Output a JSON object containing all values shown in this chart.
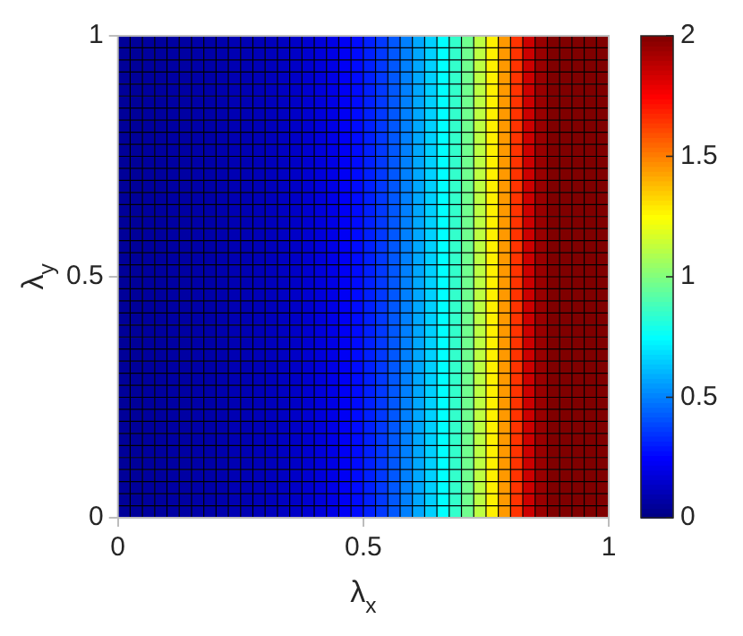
{
  "chart_data": {
    "type": "heatmap",
    "xlabel": "λ$_{x}$",
    "ylabel": "λ$_{y}$",
    "xlim": [
      0,
      1
    ],
    "xticks": [
      0,
      0.5,
      1
    ],
    "ylim": [
      0,
      1
    ],
    "yticks": [
      0,
      0.5,
      1
    ],
    "clim": [
      0,
      2
    ],
    "cticks": [
      0,
      0.5,
      1,
      1.5,
      2
    ],
    "cells": [
      [
        0.05,
        0.05,
        0.06,
        0.06,
        0.07,
        0.07,
        0.08,
        0.08,
        0.09,
        0.1,
        0.1,
        0.11,
        0.12,
        0.13,
        0.14,
        0.16,
        0.18,
        0.2,
        0.23,
        0.27,
        0.31,
        0.36,
        0.42,
        0.5,
        0.58,
        0.66,
        0.75,
        0.85,
        0.97,
        1.12,
        1.28,
        1.45,
        1.65,
        1.85,
        1.95,
        2,
        2,
        2,
        2,
        2
      ],
      [
        0.05,
        0.05,
        0.06,
        0.06,
        0.07,
        0.07,
        0.08,
        0.08,
        0.09,
        0.1,
        0.1,
        0.11,
        0.12,
        0.13,
        0.14,
        0.16,
        0.18,
        0.2,
        0.23,
        0.27,
        0.31,
        0.36,
        0.42,
        0.5,
        0.58,
        0.66,
        0.75,
        0.85,
        0.97,
        1.12,
        1.28,
        1.45,
        1.65,
        1.85,
        1.95,
        2,
        2,
        2,
        2,
        2
      ],
      [
        0.05,
        0.05,
        0.06,
        0.06,
        0.07,
        0.07,
        0.08,
        0.08,
        0.09,
        0.1,
        0.1,
        0.11,
        0.12,
        0.13,
        0.14,
        0.16,
        0.18,
        0.2,
        0.23,
        0.27,
        0.31,
        0.36,
        0.42,
        0.5,
        0.58,
        0.66,
        0.75,
        0.85,
        0.97,
        1.12,
        1.28,
        1.45,
        1.65,
        1.85,
        1.95,
        2,
        2,
        2,
        2,
        2
      ],
      [
        0.05,
        0.05,
        0.06,
        0.06,
        0.07,
        0.07,
        0.08,
        0.08,
        0.09,
        0.1,
        0.1,
        0.11,
        0.12,
        0.13,
        0.14,
        0.16,
        0.18,
        0.2,
        0.23,
        0.27,
        0.31,
        0.36,
        0.42,
        0.5,
        0.58,
        0.66,
        0.75,
        0.85,
        0.97,
        1.12,
        1.28,
        1.45,
        1.65,
        1.85,
        1.95,
        2,
        2,
        2,
        2,
        2
      ],
      [
        0.05,
        0.05,
        0.06,
        0.06,
        0.07,
        0.07,
        0.08,
        0.08,
        0.09,
        0.1,
        0.1,
        0.11,
        0.12,
        0.13,
        0.14,
        0.16,
        0.18,
        0.2,
        0.23,
        0.27,
        0.31,
        0.36,
        0.42,
        0.5,
        0.58,
        0.66,
        0.75,
        0.85,
        0.97,
        1.12,
        1.28,
        1.45,
        1.65,
        1.85,
        1.95,
        2,
        2,
        2,
        2,
        2
      ],
      [
        0.05,
        0.05,
        0.06,
        0.06,
        0.07,
        0.07,
        0.08,
        0.08,
        0.09,
        0.1,
        0.1,
        0.11,
        0.12,
        0.13,
        0.14,
        0.16,
        0.18,
        0.2,
        0.23,
        0.27,
        0.31,
        0.36,
        0.42,
        0.5,
        0.58,
        0.66,
        0.75,
        0.85,
        0.97,
        1.12,
        1.28,
        1.45,
        1.65,
        1.85,
        1.95,
        2,
        2,
        2,
        2,
        2
      ],
      [
        0.05,
        0.05,
        0.06,
        0.06,
        0.07,
        0.07,
        0.08,
        0.08,
        0.09,
        0.1,
        0.1,
        0.11,
        0.12,
        0.13,
        0.14,
        0.16,
        0.18,
        0.2,
        0.23,
        0.27,
        0.31,
        0.36,
        0.42,
        0.5,
        0.58,
        0.66,
        0.75,
        0.85,
        0.97,
        1.12,
        1.28,
        1.45,
        1.65,
        1.85,
        1.95,
        2,
        2,
        2,
        2,
        2
      ],
      [
        0.05,
        0.05,
        0.06,
        0.06,
        0.07,
        0.07,
        0.08,
        0.08,
        0.09,
        0.1,
        0.1,
        0.11,
        0.12,
        0.13,
        0.14,
        0.16,
        0.18,
        0.2,
        0.23,
        0.27,
        0.31,
        0.36,
        0.42,
        0.5,
        0.58,
        0.66,
        0.75,
        0.85,
        0.97,
        1.12,
        1.28,
        1.45,
        1.65,
        1.85,
        1.95,
        2,
        2,
        2,
        2,
        2
      ],
      [
        0.05,
        0.05,
        0.06,
        0.06,
        0.07,
        0.07,
        0.08,
        0.08,
        0.09,
        0.1,
        0.1,
        0.11,
        0.12,
        0.13,
        0.14,
        0.16,
        0.18,
        0.2,
        0.23,
        0.27,
        0.31,
        0.36,
        0.42,
        0.5,
        0.58,
        0.66,
        0.75,
        0.85,
        0.97,
        1.12,
        1.28,
        1.45,
        1.65,
        1.85,
        1.95,
        2,
        2,
        2,
        2,
        2
      ],
      [
        0.05,
        0.05,
        0.06,
        0.06,
        0.07,
        0.07,
        0.08,
        0.08,
        0.09,
        0.1,
        0.1,
        0.11,
        0.12,
        0.13,
        0.14,
        0.16,
        0.18,
        0.2,
        0.23,
        0.27,
        0.31,
        0.36,
        0.42,
        0.5,
        0.58,
        0.66,
        0.75,
        0.85,
        0.97,
        1.12,
        1.28,
        1.45,
        1.65,
        1.85,
        1.95,
        2,
        2,
        2,
        2,
        2
      ],
      [
        0.05,
        0.05,
        0.06,
        0.06,
        0.07,
        0.07,
        0.08,
        0.08,
        0.09,
        0.1,
        0.1,
        0.11,
        0.12,
        0.13,
        0.14,
        0.16,
        0.18,
        0.2,
        0.23,
        0.27,
        0.31,
        0.36,
        0.42,
        0.5,
        0.58,
        0.66,
        0.75,
        0.85,
        0.97,
        1.12,
        1.28,
        1.45,
        1.65,
        1.85,
        1.95,
        2,
        2,
        2,
        2,
        2
      ],
      [
        0.05,
        0.05,
        0.06,
        0.06,
        0.07,
        0.07,
        0.08,
        0.08,
        0.09,
        0.1,
        0.1,
        0.11,
        0.12,
        0.13,
        0.14,
        0.16,
        0.18,
        0.2,
        0.23,
        0.27,
        0.31,
        0.36,
        0.42,
        0.5,
        0.58,
        0.66,
        0.75,
        0.85,
        0.97,
        1.12,
        1.28,
        1.45,
        1.65,
        1.85,
        1.95,
        2,
        2,
        2,
        2,
        2
      ],
      [
        0.05,
        0.05,
        0.06,
        0.06,
        0.07,
        0.07,
        0.08,
        0.08,
        0.09,
        0.1,
        0.1,
        0.11,
        0.12,
        0.13,
        0.14,
        0.16,
        0.18,
        0.2,
        0.23,
        0.27,
        0.31,
        0.36,
        0.42,
        0.5,
        0.58,
        0.66,
        0.75,
        0.85,
        0.97,
        1.12,
        1.28,
        1.45,
        1.65,
        1.85,
        1.95,
        2,
        2,
        2,
        2,
        2
      ],
      [
        0.05,
        0.05,
        0.06,
        0.06,
        0.07,
        0.07,
        0.08,
        0.08,
        0.09,
        0.1,
        0.1,
        0.11,
        0.12,
        0.13,
        0.14,
        0.16,
        0.18,
        0.2,
        0.23,
        0.27,
        0.31,
        0.36,
        0.42,
        0.5,
        0.58,
        0.66,
        0.75,
        0.85,
        0.97,
        1.12,
        1.28,
        1.45,
        1.65,
        1.85,
        1.95,
        2,
        2,
        2,
        2,
        2
      ],
      [
        0.05,
        0.05,
        0.06,
        0.06,
        0.07,
        0.07,
        0.08,
        0.08,
        0.09,
        0.1,
        0.1,
        0.11,
        0.12,
        0.13,
        0.14,
        0.16,
        0.18,
        0.2,
        0.23,
        0.27,
        0.31,
        0.36,
        0.42,
        0.5,
        0.58,
        0.66,
        0.75,
        0.85,
        0.97,
        1.12,
        1.28,
        1.45,
        1.65,
        1.85,
        1.95,
        2,
        2,
        2,
        2,
        2
      ],
      [
        0.05,
        0.05,
        0.06,
        0.06,
        0.07,
        0.07,
        0.08,
        0.08,
        0.09,
        0.1,
        0.1,
        0.11,
        0.12,
        0.13,
        0.14,
        0.16,
        0.18,
        0.2,
        0.23,
        0.27,
        0.31,
        0.36,
        0.42,
        0.5,
        0.58,
        0.66,
        0.75,
        0.85,
        0.97,
        1.12,
        1.28,
        1.45,
        1.65,
        1.85,
        1.95,
        2,
        2,
        2,
        2,
        2
      ],
      [
        0.05,
        0.05,
        0.06,
        0.06,
        0.07,
        0.07,
        0.08,
        0.08,
        0.09,
        0.1,
        0.1,
        0.11,
        0.12,
        0.13,
        0.14,
        0.16,
        0.18,
        0.2,
        0.23,
        0.27,
        0.31,
        0.36,
        0.42,
        0.5,
        0.58,
        0.66,
        0.75,
        0.85,
        0.97,
        1.12,
        1.28,
        1.45,
        1.65,
        1.85,
        1.95,
        2,
        2,
        2,
        2,
        2
      ],
      [
        0.05,
        0.05,
        0.06,
        0.06,
        0.07,
        0.07,
        0.08,
        0.08,
        0.09,
        0.1,
        0.1,
        0.11,
        0.12,
        0.13,
        0.14,
        0.16,
        0.18,
        0.2,
        0.23,
        0.27,
        0.31,
        0.36,
        0.42,
        0.5,
        0.58,
        0.66,
        0.75,
        0.85,
        0.97,
        1.12,
        1.28,
        1.45,
        1.65,
        1.85,
        1.95,
        2,
        2,
        2,
        2,
        2
      ],
      [
        0.05,
        0.05,
        0.06,
        0.06,
        0.07,
        0.07,
        0.08,
        0.08,
        0.09,
        0.1,
        0.1,
        0.11,
        0.12,
        0.13,
        0.14,
        0.16,
        0.18,
        0.2,
        0.23,
        0.27,
        0.31,
        0.36,
        0.42,
        0.5,
        0.58,
        0.66,
        0.75,
        0.85,
        0.97,
        1.12,
        1.28,
        1.45,
        1.65,
        1.85,
        1.95,
        2,
        2,
        2,
        2,
        2
      ],
      [
        0.05,
        0.05,
        0.06,
        0.06,
        0.07,
        0.07,
        0.08,
        0.08,
        0.09,
        0.1,
        0.1,
        0.11,
        0.12,
        0.13,
        0.14,
        0.16,
        0.18,
        0.2,
        0.23,
        0.27,
        0.31,
        0.36,
        0.42,
        0.5,
        0.58,
        0.66,
        0.75,
        0.85,
        0.97,
        1.12,
        1.28,
        1.45,
        1.65,
        1.85,
        1.95,
        2,
        2,
        2,
        2,
        2
      ],
      [
        0.05,
        0.05,
        0.06,
        0.06,
        0.07,
        0.07,
        0.08,
        0.08,
        0.09,
        0.1,
        0.1,
        0.11,
        0.12,
        0.13,
        0.14,
        0.16,
        0.18,
        0.2,
        0.23,
        0.27,
        0.31,
        0.36,
        0.42,
        0.5,
        0.58,
        0.66,
        0.75,
        0.85,
        0.97,
        1.12,
        1.28,
        1.45,
        1.65,
        1.85,
        1.95,
        2,
        2,
        2,
        2,
        2
      ],
      [
        0.05,
        0.05,
        0.06,
        0.06,
        0.07,
        0.07,
        0.08,
        0.08,
        0.09,
        0.1,
        0.1,
        0.11,
        0.12,
        0.13,
        0.14,
        0.16,
        0.18,
        0.2,
        0.23,
        0.27,
        0.31,
        0.36,
        0.42,
        0.5,
        0.58,
        0.66,
        0.75,
        0.85,
        0.97,
        1.12,
        1.28,
        1.45,
        1.65,
        1.85,
        1.95,
        2,
        2,
        2,
        2,
        2
      ],
      [
        0.05,
        0.05,
        0.06,
        0.06,
        0.07,
        0.07,
        0.08,
        0.08,
        0.09,
        0.1,
        0.1,
        0.11,
        0.12,
        0.13,
        0.14,
        0.16,
        0.18,
        0.2,
        0.23,
        0.27,
        0.31,
        0.36,
        0.42,
        0.5,
        0.58,
        0.66,
        0.75,
        0.85,
        0.97,
        1.12,
        1.28,
        1.45,
        1.65,
        1.85,
        1.95,
        2,
        2,
        2,
        2,
        2
      ],
      [
        0.05,
        0.05,
        0.06,
        0.06,
        0.07,
        0.07,
        0.08,
        0.08,
        0.09,
        0.1,
        0.1,
        0.11,
        0.12,
        0.13,
        0.14,
        0.16,
        0.18,
        0.2,
        0.23,
        0.27,
        0.31,
        0.36,
        0.42,
        0.5,
        0.58,
        0.66,
        0.75,
        0.85,
        0.97,
        1.12,
        1.28,
        1.45,
        1.65,
        1.85,
        1.95,
        2,
        2,
        2,
        2,
        2
      ],
      [
        0.05,
        0.05,
        0.06,
        0.06,
        0.07,
        0.07,
        0.08,
        0.08,
        0.09,
        0.1,
        0.1,
        0.11,
        0.12,
        0.13,
        0.14,
        0.16,
        0.18,
        0.2,
        0.23,
        0.27,
        0.31,
        0.36,
        0.42,
        0.5,
        0.58,
        0.66,
        0.75,
        0.85,
        0.97,
        1.12,
        1.28,
        1.45,
        1.65,
        1.85,
        1.95,
        2,
        2,
        2,
        2,
        2
      ],
      [
        0.05,
        0.05,
        0.06,
        0.06,
        0.07,
        0.07,
        0.08,
        0.08,
        0.09,
        0.1,
        0.1,
        0.11,
        0.12,
        0.13,
        0.14,
        0.16,
        0.18,
        0.2,
        0.23,
        0.27,
        0.31,
        0.36,
        0.42,
        0.5,
        0.58,
        0.66,
        0.75,
        0.85,
        0.97,
        1.12,
        1.28,
        1.45,
        1.65,
        1.85,
        1.95,
        2,
        2,
        2,
        2,
        2
      ],
      [
        0.05,
        0.05,
        0.06,
        0.06,
        0.07,
        0.07,
        0.08,
        0.08,
        0.09,
        0.1,
        0.1,
        0.11,
        0.12,
        0.13,
        0.14,
        0.16,
        0.18,
        0.2,
        0.23,
        0.27,
        0.31,
        0.36,
        0.42,
        0.5,
        0.58,
        0.66,
        0.75,
        0.85,
        0.97,
        1.12,
        1.28,
        1.45,
        1.65,
        1.85,
        1.95,
        2,
        2,
        2,
        2,
        2
      ],
      [
        0.05,
        0.05,
        0.06,
        0.06,
        0.07,
        0.07,
        0.08,
        0.08,
        0.09,
        0.1,
        0.1,
        0.11,
        0.12,
        0.13,
        0.14,
        0.16,
        0.18,
        0.2,
        0.23,
        0.27,
        0.31,
        0.36,
        0.42,
        0.5,
        0.58,
        0.66,
        0.75,
        0.85,
        0.97,
        1.12,
        1.28,
        1.45,
        1.65,
        1.85,
        1.95,
        2,
        2,
        2,
        2,
        2
      ],
      [
        0.05,
        0.05,
        0.06,
        0.06,
        0.07,
        0.07,
        0.08,
        0.08,
        0.09,
        0.1,
        0.1,
        0.11,
        0.12,
        0.13,
        0.14,
        0.16,
        0.18,
        0.2,
        0.23,
        0.27,
        0.31,
        0.36,
        0.42,
        0.5,
        0.58,
        0.66,
        0.75,
        0.85,
        0.97,
        1.12,
        1.28,
        1.45,
        1.65,
        1.85,
        1.95,
        2,
        2,
        2,
        2,
        2
      ],
      [
        0.05,
        0.05,
        0.06,
        0.06,
        0.07,
        0.07,
        0.08,
        0.08,
        0.09,
        0.1,
        0.1,
        0.11,
        0.12,
        0.13,
        0.14,
        0.16,
        0.18,
        0.2,
        0.23,
        0.27,
        0.31,
        0.36,
        0.42,
        0.5,
        0.58,
        0.66,
        0.75,
        0.85,
        0.97,
        1.12,
        1.28,
        1.45,
        1.65,
        1.85,
        1.95,
        2,
        2,
        2,
        2,
        2
      ],
      [
        0.05,
        0.05,
        0.06,
        0.06,
        0.07,
        0.07,
        0.08,
        0.08,
        0.09,
        0.1,
        0.1,
        0.11,
        0.12,
        0.13,
        0.14,
        0.16,
        0.18,
        0.2,
        0.23,
        0.27,
        0.31,
        0.36,
        0.42,
        0.5,
        0.58,
        0.66,
        0.75,
        0.85,
        0.97,
        1.12,
        1.28,
        1.45,
        1.65,
        1.85,
        1.95,
        2,
        2,
        2,
        2,
        2
      ],
      [
        0.05,
        0.05,
        0.06,
        0.06,
        0.07,
        0.07,
        0.08,
        0.08,
        0.09,
        0.1,
        0.1,
        0.11,
        0.12,
        0.13,
        0.14,
        0.16,
        0.18,
        0.2,
        0.23,
        0.27,
        0.31,
        0.36,
        0.42,
        0.5,
        0.58,
        0.66,
        0.75,
        0.85,
        0.97,
        1.12,
        1.28,
        1.45,
        1.65,
        1.85,
        1.95,
        2,
        2,
        2,
        2,
        2
      ],
      [
        0.05,
        0.05,
        0.06,
        0.06,
        0.07,
        0.07,
        0.08,
        0.08,
        0.09,
        0.1,
        0.1,
        0.11,
        0.12,
        0.13,
        0.14,
        0.16,
        0.18,
        0.2,
        0.23,
        0.27,
        0.31,
        0.36,
        0.42,
        0.5,
        0.58,
        0.66,
        0.75,
        0.85,
        0.97,
        1.12,
        1.28,
        1.45,
        1.65,
        1.85,
        1.95,
        2,
        2,
        2,
        2,
        2
      ],
      [
        0.05,
        0.05,
        0.06,
        0.06,
        0.07,
        0.07,
        0.08,
        0.08,
        0.09,
        0.1,
        0.1,
        0.11,
        0.12,
        0.13,
        0.14,
        0.16,
        0.18,
        0.2,
        0.23,
        0.27,
        0.31,
        0.36,
        0.42,
        0.5,
        0.58,
        0.66,
        0.75,
        0.85,
        0.97,
        1.12,
        1.28,
        1.45,
        1.65,
        1.85,
        1.95,
        2,
        2,
        2,
        2,
        2
      ],
      [
        0.05,
        0.05,
        0.06,
        0.06,
        0.07,
        0.07,
        0.08,
        0.08,
        0.09,
        0.1,
        0.1,
        0.11,
        0.12,
        0.13,
        0.14,
        0.16,
        0.18,
        0.2,
        0.23,
        0.27,
        0.31,
        0.36,
        0.42,
        0.5,
        0.58,
        0.66,
        0.75,
        0.85,
        0.97,
        1.12,
        1.28,
        1.45,
        1.65,
        1.85,
        1.95,
        2,
        2,
        2,
        2,
        2
      ],
      [
        0.05,
        0.05,
        0.06,
        0.06,
        0.07,
        0.07,
        0.08,
        0.08,
        0.09,
        0.1,
        0.1,
        0.11,
        0.12,
        0.13,
        0.14,
        0.16,
        0.18,
        0.2,
        0.23,
        0.27,
        0.31,
        0.36,
        0.42,
        0.5,
        0.58,
        0.66,
        0.75,
        0.85,
        0.97,
        1.12,
        1.28,
        1.45,
        1.65,
        1.85,
        1.95,
        2,
        2,
        2,
        2,
        2
      ],
      [
        0.05,
        0.05,
        0.06,
        0.06,
        0.07,
        0.07,
        0.08,
        0.08,
        0.09,
        0.1,
        0.1,
        0.11,
        0.12,
        0.13,
        0.14,
        0.16,
        0.18,
        0.2,
        0.23,
        0.27,
        0.31,
        0.36,
        0.42,
        0.5,
        0.58,
        0.66,
        0.75,
        0.85,
        0.97,
        1.12,
        1.28,
        1.45,
        1.65,
        1.85,
        1.95,
        2,
        2,
        2,
        2,
        2
      ],
      [
        0.05,
        0.05,
        0.06,
        0.06,
        0.07,
        0.07,
        0.08,
        0.08,
        0.09,
        0.1,
        0.1,
        0.11,
        0.12,
        0.13,
        0.14,
        0.16,
        0.18,
        0.2,
        0.23,
        0.27,
        0.31,
        0.36,
        0.42,
        0.5,
        0.58,
        0.66,
        0.75,
        0.85,
        0.97,
        1.12,
        1.28,
        1.45,
        1.65,
        1.85,
        1.95,
        2,
        2,
        2,
        2,
        2
      ],
      [
        0.05,
        0.05,
        0.06,
        0.06,
        0.07,
        0.07,
        0.08,
        0.08,
        0.09,
        0.1,
        0.1,
        0.11,
        0.12,
        0.13,
        0.14,
        0.16,
        0.18,
        0.2,
        0.23,
        0.27,
        0.31,
        0.36,
        0.42,
        0.5,
        0.58,
        0.66,
        0.75,
        0.85,
        0.97,
        1.12,
        1.28,
        1.45,
        1.65,
        1.85,
        1.95,
        2,
        2,
        2,
        2,
        2
      ],
      [
        0.05,
        0.05,
        0.06,
        0.06,
        0.07,
        0.07,
        0.08,
        0.08,
        0.09,
        0.1,
        0.1,
        0.11,
        0.12,
        0.13,
        0.14,
        0.16,
        0.18,
        0.2,
        0.23,
        0.27,
        0.31,
        0.36,
        0.42,
        0.5,
        0.58,
        0.66,
        0.75,
        0.85,
        0.97,
        1.12,
        1.28,
        1.45,
        1.65,
        1.85,
        1.95,
        2,
        2,
        2,
        2,
        2
      ]
    ]
  }
}
